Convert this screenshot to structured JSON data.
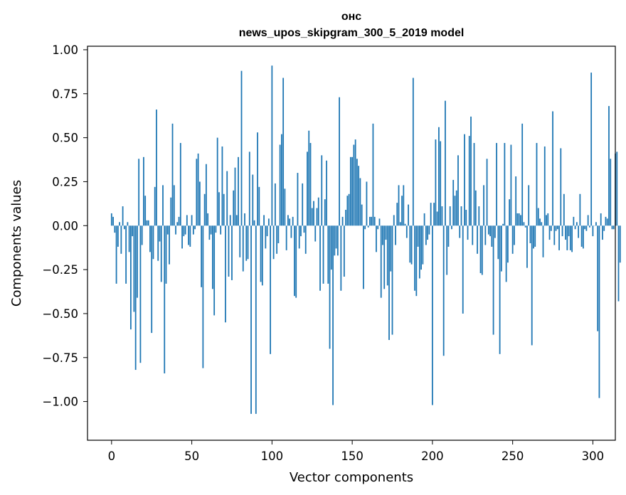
{
  "chart_data": {
    "type": "bar",
    "title": "онс",
    "subtitle": "news_upos_skipgram_300_5_2019 model",
    "xlabel": "Vector components",
    "ylabel": "Components values",
    "xlim": [
      -15,
      314
    ],
    "ylim": [
      -1.22,
      1.02
    ],
    "xticks": [
      0,
      50,
      100,
      150,
      200,
      250,
      300
    ],
    "yticks": [
      -1.0,
      -0.75,
      -0.5,
      -0.25,
      0.0,
      0.25,
      0.5,
      0.75,
      1.0
    ],
    "xtick_labels": [
      "0",
      "50",
      "100",
      "150",
      "200",
      "250",
      "300"
    ],
    "ytick_labels": [
      "−1.00",
      "−0.75",
      "−0.50",
      "−0.25",
      "0.00",
      "0.25",
      "0.50",
      "0.75",
      "1.00"
    ],
    "bar_color": "#1f77b4",
    "values": [
      0.07,
      0.05,
      -0.04,
      -0.33,
      -0.12,
      0.02,
      -0.16,
      0.11,
      -0.02,
      -0.33,
      0.02,
      -0.15,
      -0.59,
      -0.06,
      -0.49,
      -0.82,
      -0.41,
      0.38,
      -0.78,
      -0.11,
      0.39,
      0.17,
      0.03,
      0.03,
      -0.15,
      -0.61,
      -0.19,
      0.22,
      0.66,
      -0.2,
      -0.09,
      -0.32,
      0.23,
      -0.84,
      -0.33,
      -0.05,
      -0.22,
      0.16,
      0.58,
      0.23,
      -0.05,
      0.02,
      0.05,
      0.47,
      -0.13,
      -0.06,
      -0.05,
      0.06,
      -0.11,
      -0.12,
      0.06,
      -0.05,
      -0.02,
      0.38,
      0.41,
      0.25,
      -0.35,
      -0.81,
      0.18,
      0.35,
      0.07,
      -0.08,
      -0.05,
      -0.36,
      -0.51,
      -0.04,
      0.5,
      0.19,
      -0.05,
      0.45,
      0.18,
      -0.55,
      0.31,
      -0.29,
      0.06,
      -0.31,
      0.2,
      0.33,
      0.06,
      0.39,
      -0.18,
      0.88,
      -0.26,
      0.07,
      -0.2,
      -0.19,
      0.42,
      -1.07,
      0.29,
      0.03,
      -1.07,
      0.53,
      0.22,
      -0.32,
      -0.34,
      0.06,
      -0.13,
      -0.06,
      0.04,
      -0.73,
      0.91,
      -0.19,
      0.24,
      -0.16,
      -0.1,
      0.46,
      0.52,
      0.84,
      0.21,
      -0.14,
      0.06,
      0.04,
      -0.07,
      0.05,
      -0.4,
      -0.41,
      0.3,
      -0.13,
      -0.06,
      0.24,
      -0.04,
      -0.16,
      0.42,
      0.54,
      0.47,
      0.1,
      0.14,
      -0.09,
      0.1,
      0.16,
      -0.37,
      0.4,
      -0.33,
      0.15,
      0.37,
      -0.33,
      -0.7,
      -0.25,
      -1.02,
      -0.17,
      -0.13,
      -0.17,
      0.73,
      -0.37,
      0.05,
      -0.29,
      0.09,
      0.17,
      0.18,
      0.39,
      0.39,
      0.46,
      0.49,
      0.38,
      0.34,
      0.27,
      0.12,
      -0.36,
      -0.02,
      0.25,
      -0.01,
      0.05,
      0.05,
      0.58,
      0.05,
      -0.15,
      -0.02,
      0.04,
      -0.41,
      -0.11,
      -0.36,
      -0.08,
      -0.34,
      -0.65,
      -0.26,
      -0.62,
      0.06,
      -0.11,
      0.13,
      0.23,
      0.02,
      0.17,
      0.23,
      0.01,
      -0.07,
      0.12,
      -0.21,
      -0.22,
      0.84,
      -0.37,
      -0.4,
      -0.12,
      -0.3,
      -0.25,
      -0.22,
      0.07,
      -0.11,
      -0.08,
      -0.05,
      0.13,
      -1.02,
      0.13,
      0.49,
      0.08,
      0.56,
      0.48,
      0.11,
      -0.74,
      0.71,
      -0.28,
      -0.12,
      0.11,
      -0.02,
      0.26,
      0.17,
      0.2,
      0.4,
      -0.07,
      0.11,
      -0.5,
      0.52,
      0.09,
      -0.08,
      0.51,
      0.62,
      -0.11,
      0.47,
      0.2,
      -0.16,
      0.11,
      -0.27,
      -0.28,
      0.23,
      -0.11,
      0.38,
      -0.05,
      -0.06,
      -0.12,
      -0.62,
      -0.07,
      0.47,
      -0.19,
      -0.73,
      -0.26,
      0.01,
      0.47,
      -0.32,
      -0.21,
      0.15,
      0.46,
      -0.16,
      -0.11,
      0.28,
      0.07,
      0.07,
      0.06,
      0.58,
      0.02,
      -0.01,
      -0.24,
      0.23,
      -0.1,
      -0.68,
      -0.13,
      -0.12,
      0.47,
      0.1,
      0.04,
      0.02,
      -0.18,
      0.45,
      0.06,
      0.07,
      -0.08,
      -0.03,
      0.65,
      -0.11,
      -0.03,
      -0.02,
      -0.14,
      0.44,
      -0.06,
      0.18,
      -0.08,
      -0.14,
      -0.06,
      -0.14,
      -0.15,
      0.05,
      -0.02,
      0.02,
      -0.07,
      0.18,
      -0.12,
      -0.13,
      -0.02,
      -0.03,
      0.06,
      -0.01,
      0.87,
      -0.06,
      0.0,
      0.02,
      -0.6,
      -0.98,
      0.07,
      -0.08,
      -0.03,
      0.05,
      0.04,
      0.68,
      0.38,
      -0.02,
      -0.02,
      0.41,
      0.42,
      -0.43,
      -0.21
    ]
  }
}
